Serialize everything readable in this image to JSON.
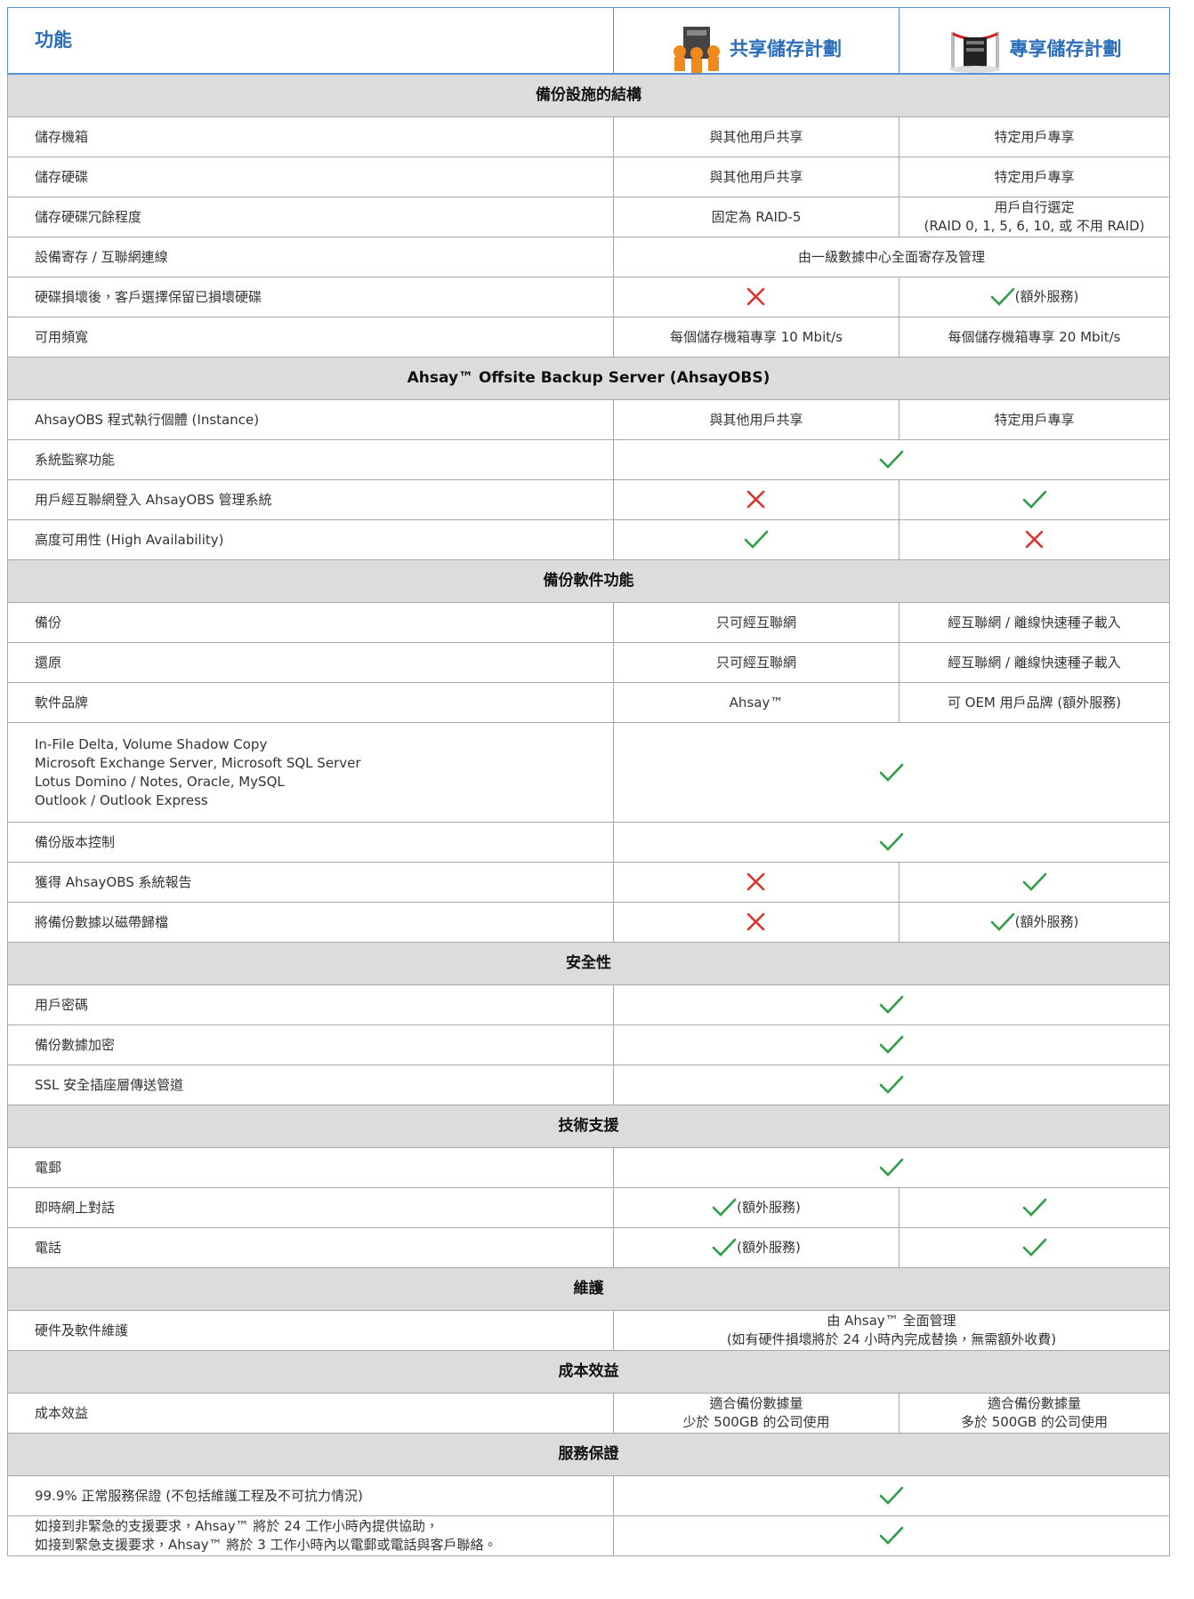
{
  "header": {
    "feature": "功能",
    "plans": [
      "共享儲存計劃",
      "專享儲存計劃"
    ]
  },
  "sections": [
    {
      "title": "備份設施的結構",
      "rows": [
        {
          "label": "儲存機箱",
          "cells": [
            "與其他用戶共享",
            "特定用戶專享"
          ]
        },
        {
          "label": "儲存硬碟",
          "cells": [
            "與其他用戶共享",
            "特定用戶專享"
          ]
        },
        {
          "label": "儲存硬碟冗餘程度",
          "cells": [
            "固定為 RAID-5",
            "用戶自行選定\n(RAID 0, 1, 5, 6, 10, 或 不用 RAID)"
          ]
        },
        {
          "label": "設備寄存 / 互聯網連線",
          "cells": [
            "由一級數據中心全面寄存及管理"
          ]
        },
        {
          "label": "硬碟損壞後，客戶選擇保留已損壞硬碟",
          "cells": [
            {
              "icon": "cross"
            },
            {
              "icon": "check",
              "text": "(額外服務)"
            }
          ]
        },
        {
          "label": "可用頻寬",
          "cells": [
            "每個儲存機箱專享 10 Mbit/s",
            "每個儲存機箱專享 20 Mbit/s"
          ]
        }
      ]
    },
    {
      "title": "Ahsay™ Offsite Backup Server (AhsayOBS)",
      "rows": [
        {
          "label": "AhsayOBS 程式執行個體 (Instance)",
          "cells": [
            "與其他用戶共享",
            "特定用戶專享"
          ]
        },
        {
          "label": "系統監察功能",
          "cells": [
            {
              "icon": "check"
            }
          ]
        },
        {
          "label": "用戶經互聯網登入 AhsayOBS 管理系統",
          "cells": [
            {
              "icon": "cross"
            },
            {
              "icon": "check"
            }
          ]
        },
        {
          "label": "高度可用性 (High Availability)",
          "cells": [
            {
              "icon": "check"
            },
            {
              "icon": "cross"
            }
          ]
        }
      ]
    },
    {
      "title": "備份軟件功能",
      "rows": [
        {
          "label": "備份",
          "cells": [
            "只可經互聯網",
            "經互聯網 / 離線快速種子載入"
          ]
        },
        {
          "label": "還原",
          "cells": [
            "只可經互聯網",
            "經互聯網 / 離線快速種子載入"
          ]
        },
        {
          "label": "軟件品牌",
          "cells": [
            "Ahsay™",
            "可 OEM 用戶品牌 (額外服務)"
          ]
        },
        {
          "label": "In-File Delta, Volume Shadow Copy\nMicrosoft Exchange Server, Microsoft SQL Server\nLotus Domino / Notes, Oracle, MySQL\nOutlook / Outlook Express",
          "cells": [
            {
              "icon": "check"
            }
          ]
        },
        {
          "label": "備份版本控制",
          "cells": [
            {
              "icon": "check"
            }
          ]
        },
        {
          "label": "獲得 AhsayOBS 系統報告",
          "cells": [
            {
              "icon": "cross"
            },
            {
              "icon": "check"
            }
          ]
        },
        {
          "label": "將備份數據以磁帶歸檔",
          "cells": [
            {
              "icon": "cross"
            },
            {
              "icon": "check",
              "text": "(額外服務)"
            }
          ]
        }
      ]
    },
    {
      "title": "安全性",
      "rows": [
        {
          "label": "用戶密碼",
          "cells": [
            {
              "icon": "check"
            }
          ]
        },
        {
          "label": "備份數據加密",
          "cells": [
            {
              "icon": "check"
            }
          ]
        },
        {
          "label": "SSL 安全插座層傳送管道",
          "cells": [
            {
              "icon": "check"
            }
          ]
        }
      ]
    },
    {
      "title": "技術支援",
      "rows": [
        {
          "label": "電郵",
          "cells": [
            {
              "icon": "check"
            }
          ]
        },
        {
          "label": "即時網上對話",
          "cells": [
            {
              "icon": "check",
              "text": "(額外服務)"
            },
            {
              "icon": "check"
            }
          ]
        },
        {
          "label": "電話",
          "cells": [
            {
              "icon": "check",
              "text": "(額外服務)"
            },
            {
              "icon": "check"
            }
          ]
        }
      ]
    },
    {
      "title": "維護",
      "rows": [
        {
          "label": "硬件及軟件維護",
          "cells": [
            "由 Ahsay™ 全面管理\n(如有硬件損壞將於 24 小時內完成替換，無需額外收費)"
          ]
        }
      ]
    },
    {
      "title": "成本效益",
      "rows": [
        {
          "label": "成本效益",
          "cells": [
            "適合備份數據量\n少於 500GB 的公司使用",
            "適合備份數據量\n多於 500GB 的公司使用"
          ]
        }
      ]
    },
    {
      "title": "服務保證",
      "rows": [
        {
          "label": "99.9% 正常服務保證 (不包括維護工程及不可抗力情況)",
          "cells": [
            {
              "icon": "check"
            }
          ]
        },
        {
          "label": "如接到非緊急的支援要求，Ahsay™ 將於 24 工作小時內提供協助，\n如接到緊急支援要求，Ahsay™ 將於 3 工作小時內以電郵或電話與客戶聯絡。",
          "cells": [
            {
              "icon": "check"
            }
          ]
        }
      ]
    }
  ]
}
